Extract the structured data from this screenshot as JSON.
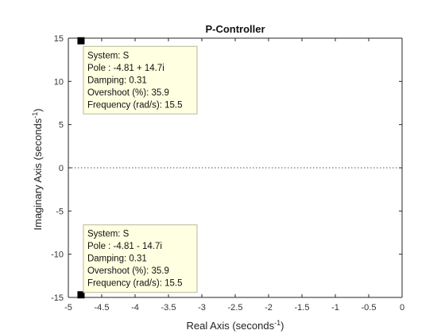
{
  "chart_data": {
    "type": "scatter",
    "title": "P-Controller",
    "xlabel": "Real Axis (seconds",
    "xlabel_sup": "-1",
    "xlabel_close": ")",
    "ylabel": "Imaginary Axis (seconds",
    "ylabel_sup": "-1",
    "ylabel_close": ")",
    "xlim": [
      -5,
      0
    ],
    "ylim": [
      -15,
      15
    ],
    "xticks": [
      -5,
      -4.5,
      -4,
      -3.5,
      -3,
      -2.5,
      -2,
      -1.5,
      -1,
      -0.5,
      0
    ],
    "xtick_labels": [
      "-5",
      "-4.5",
      "-4",
      "-3.5",
      "-3",
      "-2.5",
      "-2",
      "-1.5",
      "-1",
      "-0.5",
      "0"
    ],
    "yticks": [
      -15,
      -10,
      -5,
      0,
      5,
      10,
      15
    ],
    "ytick_labels": [
      "-15",
      "-10",
      "-5",
      "0",
      "5",
      "10",
      "15"
    ],
    "grid": false,
    "zero_line": "dotted",
    "series": [
      {
        "points": [
          {
            "x": -4.81,
            "y": 14.7
          },
          {
            "x": -4.81,
            "y": -14.7
          }
        ],
        "marker": "square",
        "color": "#000000"
      }
    ],
    "annotations": [
      {
        "x": -4.81,
        "y": 14.7,
        "lines": [
          "System: S",
          "Pole : -4.81 + 14.7i",
          "Damping: 0.31",
          "Overshoot (%): 35.9",
          "Frequency (rad/s): 15.5"
        ]
      },
      {
        "x": -4.81,
        "y": -14.7,
        "lines": [
          "System: S",
          "Pole : -4.81 - 14.7i",
          "Damping: 0.31",
          "Overshoot (%): 35.9",
          "Frequency (rad/s): 15.5"
        ]
      }
    ],
    "colors": {
      "tooltip_bg": "#ffffe1",
      "tooltip_border": "#b8b89a",
      "axis": "#262626",
      "zero_line": "#555555"
    }
  }
}
